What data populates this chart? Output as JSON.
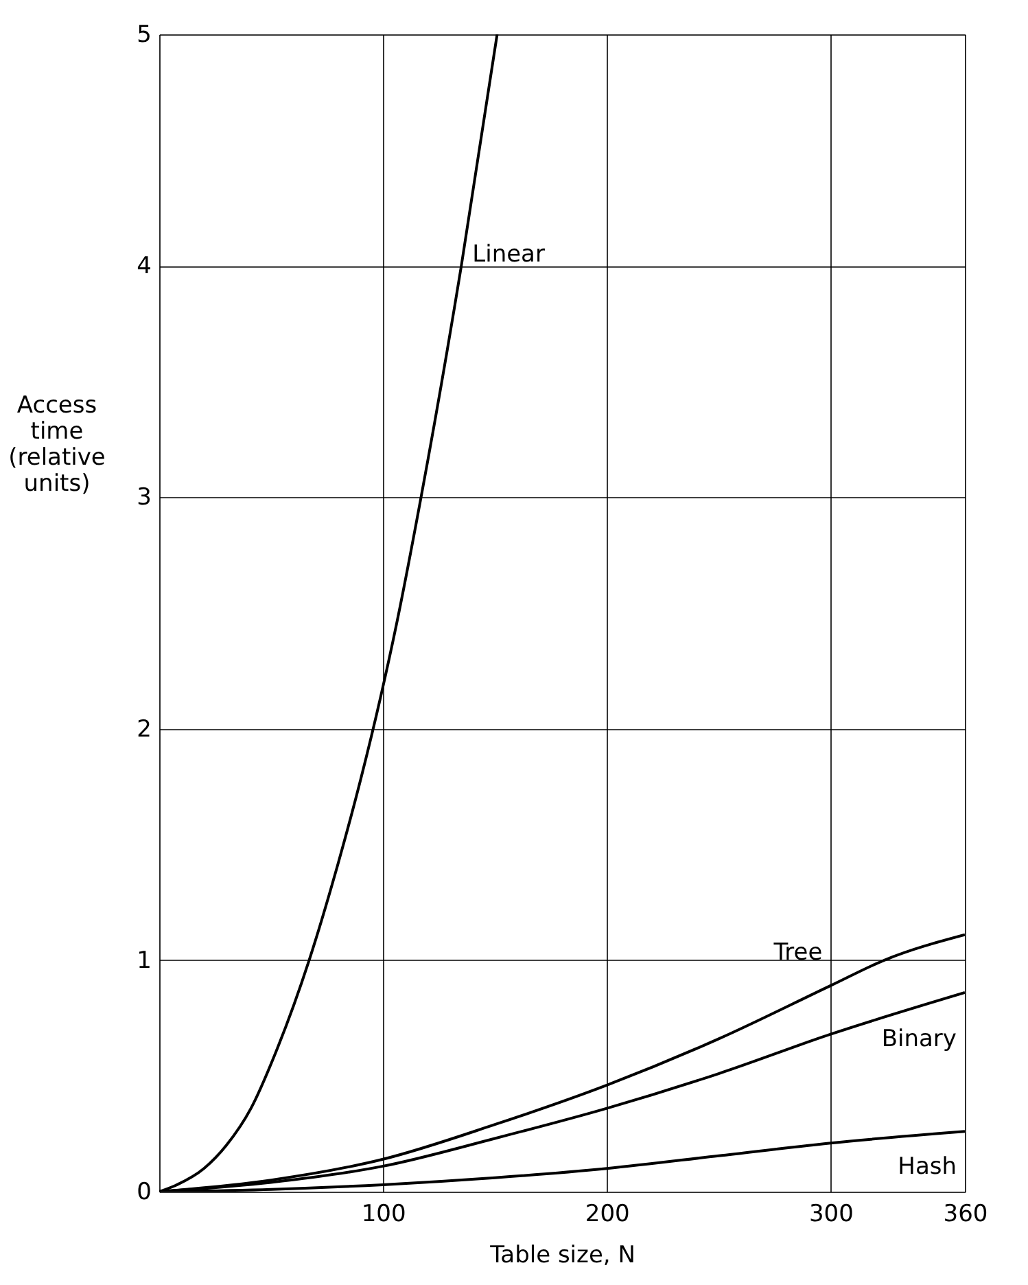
{
  "chart_data": {
    "type": "line",
    "xlabel": "Table size, N",
    "ylabel": "Access time (relative units)",
    "xlim": [
      0,
      360
    ],
    "ylim": [
      0,
      5
    ],
    "xticks": [
      {
        "value": 0,
        "label": null
      },
      100,
      200,
      300,
      360
    ],
    "yticks": [
      0,
      1,
      2,
      3,
      4,
      5
    ],
    "grid": true,
    "legend": false,
    "marker": "none",
    "line_style": "solid",
    "series": [
      {
        "name": "Linear",
        "color": "#000000",
        "x": [
          0,
          8,
          20,
          30,
          41,
          52,
          67,
          80,
          90,
          99,
          106,
          117,
          135,
          151
        ],
        "values": [
          0,
          0.03,
          0.1,
          0.2,
          0.36,
          0.6,
          1.0,
          1.42,
          1.78,
          2.14,
          2.45,
          3.0,
          4.0,
          5.0
        ]
      },
      {
        "name": "Tree",
        "color": "#000000",
        "x": [
          0,
          50,
          100,
          150,
          200,
          250,
          300,
          324,
          360
        ],
        "values": [
          0,
          0.05,
          0.14,
          0.29,
          0.46,
          0.66,
          0.89,
          1.0,
          1.11
        ]
      },
      {
        "name": "Binary",
        "color": "#000000",
        "x": [
          0,
          50,
          100,
          150,
          200,
          250,
          300,
          360
        ],
        "values": [
          0,
          0.04,
          0.11,
          0.23,
          0.36,
          0.51,
          0.68,
          0.86
        ]
      },
      {
        "name": "Hash",
        "color": "#000000",
        "x": [
          0,
          50,
          100,
          150,
          200,
          250,
          300,
          360
        ],
        "values": [
          0,
          0.01,
          0.03,
          0.06,
          0.1,
          0.155,
          0.21,
          0.26
        ]
      }
    ]
  }
}
